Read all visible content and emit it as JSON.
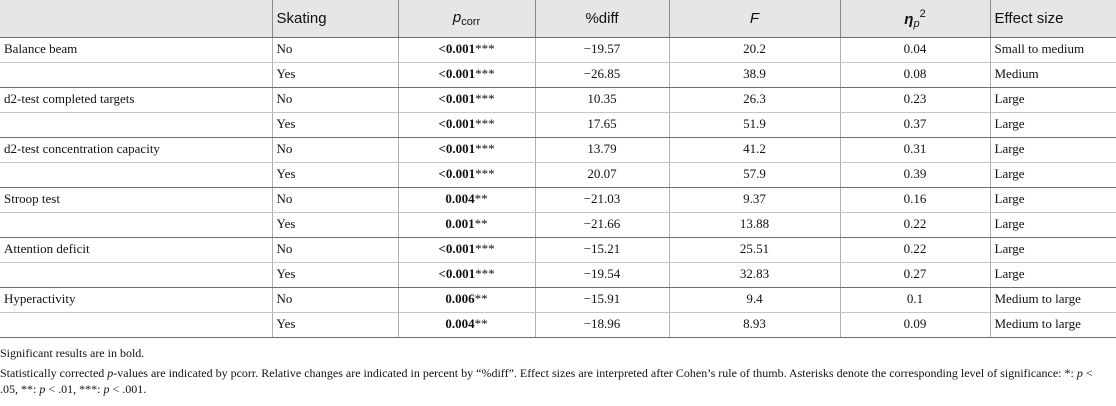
{
  "table": {
    "headers": {
      "measure": "",
      "skating": "Skating",
      "p_main": "p",
      "p_sub": "corr",
      "diff": "%diff",
      "f": "F",
      "eta_main": "η",
      "eta_sub": "p",
      "eta_sup": "2",
      "effect": "Effect size"
    },
    "rows": [
      {
        "measure": "Balance beam",
        "skating": "No",
        "p": "<0.001",
        "stars": "***",
        "diff": "−19.57",
        "f": "20.2",
        "eta": "0.04",
        "effect": "Small to medium"
      },
      {
        "measure": "",
        "skating": "Yes",
        "p": "<0.001",
        "stars": "***",
        "diff": "−26.85",
        "f": "38.9",
        "eta": "0.08",
        "effect": "Medium"
      },
      {
        "measure": "d2-test completed targets",
        "skating": "No",
        "p": "<0.001",
        "stars": "***",
        "diff": "10.35",
        "f": "26.3",
        "eta": "0.23",
        "effect": "Large"
      },
      {
        "measure": "",
        "skating": "Yes",
        "p": "<0.001",
        "stars": "***",
        "diff": "17.65",
        "f": "51.9",
        "eta": "0.37",
        "effect": "Large"
      },
      {
        "measure": "d2-test concentration capacity",
        "skating": "No",
        "p": "<0.001",
        "stars": "***",
        "diff": "13.79",
        "f": "41.2",
        "eta": "0.31",
        "effect": "Large"
      },
      {
        "measure": "",
        "skating": "Yes",
        "p": "<0.001",
        "stars": "***",
        "diff": "20.07",
        "f": "57.9",
        "eta": "0.39",
        "effect": "Large"
      },
      {
        "measure": "Stroop test",
        "skating": "No",
        "p": "0.004",
        "stars": "**",
        "diff": "−21.03",
        "f": "9.37",
        "eta": "0.16",
        "effect": "Large"
      },
      {
        "measure": "",
        "skating": "Yes",
        "p": "0.001",
        "stars": "**",
        "diff": "−21.66",
        "f": "13.88",
        "eta": "0.22",
        "effect": "Large"
      },
      {
        "measure": "Attention deficit",
        "skating": "No",
        "p": "<0.001",
        "stars": "***",
        "diff": "−15.21",
        "f": "25.51",
        "eta": "0.22",
        "effect": "Large"
      },
      {
        "measure": "",
        "skating": "Yes",
        "p": "<0.001",
        "stars": "***",
        "diff": "−19.54",
        "f": "32.83",
        "eta": "0.27",
        "effect": "Large"
      },
      {
        "measure": "Hyperactivity",
        "skating": "No",
        "p": "0.006",
        "stars": "**",
        "diff": "−15.91",
        "f": "9.4",
        "eta": "0.1",
        "effect": "Medium to large"
      },
      {
        "measure": "",
        "skating": "Yes",
        "p": "0.004",
        "stars": "**",
        "diff": "−18.96",
        "f": "8.93",
        "eta": "0.09",
        "effect": "Medium to large"
      }
    ]
  },
  "notes": {
    "line1": "Significant results are in bold.",
    "line2_a": "Statistically corrected ",
    "line2_p": "p",
    "line2_b": "-values are indicated by pcorr. Relative changes are indicated in percent by “%diff”. Effect sizes are interpreted after Cohen’s rule of thumb. Asterisks denote the corresponding level of significance: *: ",
    "p1": "p",
    "t1": " < .05, **: ",
    "p2": "p",
    "t2": " < .01, ***: ",
    "p3": "p",
    "t3": " < .001."
  }
}
